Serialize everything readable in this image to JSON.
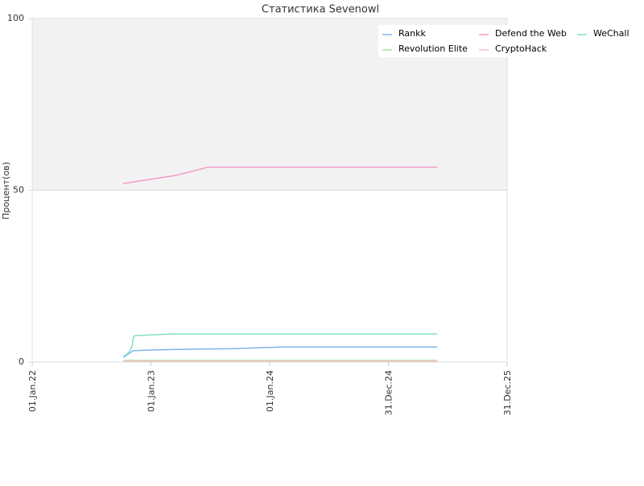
{
  "chart_data": {
    "type": "line",
    "title": "Статистика Sevenowl",
    "y_label": "Процент(ов)",
    "xlim": [
      "2022-01-01",
      "2025-12-31"
    ],
    "xticks": [
      {
        "value": "2022-01-01",
        "label": "01.Jan.22"
      },
      {
        "value": "2023-01-01",
        "label": "01.Jan.23"
      },
      {
        "value": "2024-01-01",
        "label": "01.Jan.24"
      },
      {
        "value": "2024-12-31",
        "label": "31.Dec.24"
      },
      {
        "value": "2025-12-31",
        "label": "31.Dec.25"
      }
    ],
    "ylim": [
      0,
      100
    ],
    "yticks": [
      0,
      50,
      100
    ],
    "series": [
      {
        "name": "Rankk",
        "color": "#7cb5ec",
        "x": [
          "2022-10-08",
          "2022-11-07",
          "2023-01-01",
          "2023-03-27",
          "2023-09-07",
          "2024-02-09",
          "2025-05-30"
        ],
        "values": [
          1.4,
          3.3,
          3.5,
          3.7,
          3.9,
          4.4,
          4.4
        ]
      },
      {
        "name": "Defend the Web",
        "color": "#f59bc8",
        "x": [
          "2022-10-08",
          "2023-03-17",
          "2023-06-24",
          "2025-05-30"
        ],
        "values": [
          52,
          54.3,
          56.7,
          56.7
        ]
      },
      {
        "name": "WeChall",
        "color": "#7ee0c8",
        "x": [
          "2022-10-08",
          "2022-10-25",
          "2022-11-04",
          "2022-11-09",
          "2022-11-14",
          "2023-03-09",
          "2025-05-30"
        ],
        "values": [
          1.6,
          2.8,
          4.7,
          7.5,
          7.7,
          8.2,
          8.2
        ]
      },
      {
        "name": "Revolution Elite",
        "color": "#a8e6a0",
        "x": [
          "2022-10-08",
          "2025-05-30"
        ],
        "values": [
          0.5,
          0.5
        ]
      },
      {
        "name": "CryptoHack",
        "color": "#f8c0c0",
        "x": [
          "2022-10-08",
          "2025-05-30"
        ],
        "values": [
          0.3,
          0.3
        ]
      }
    ]
  }
}
